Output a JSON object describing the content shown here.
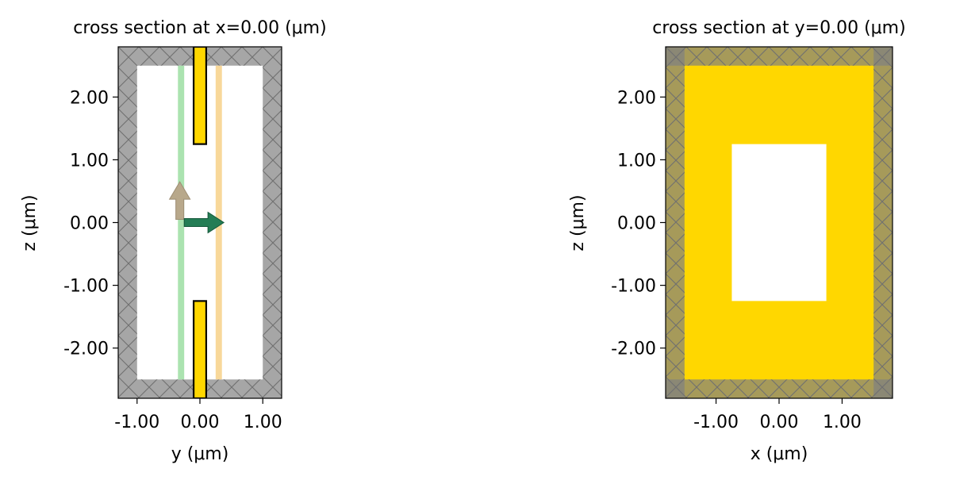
{
  "panels": [
    {
      "id": "left",
      "title": "cross section at x=0.00 (μm)",
      "xlabel": "y (μm)",
      "ylabel": "z (μm)",
      "xlim": [
        -1.3,
        1.3
      ],
      "ylim": [
        -2.8,
        2.8
      ],
      "xticks": [
        -1,
        0,
        1
      ],
      "xtick_labels": [
        "-1.00",
        "0.00",
        "1.00"
      ],
      "yticks": [
        2,
        1,
        0,
        -1,
        -2
      ],
      "ytick_labels": [
        "2.00",
        "1.00",
        "0.00",
        "-1.00",
        "-2.00"
      ],
      "pml_thickness": 0.3,
      "pml_color": "#a6a6a6",
      "source_plane": {
        "y": -0.3,
        "width": 0.1,
        "color": "#abe3b0"
      },
      "monitor_plane": {
        "y": 0.3,
        "width": 0.1,
        "color": "#f8d89a"
      },
      "gold_slabs": [
        {
          "y": [
            -0.1,
            0.1
          ],
          "z": [
            1.25,
            2.8
          ]
        },
        {
          "y": [
            -0.1,
            0.1
          ],
          "z": [
            -2.8,
            -1.25
          ]
        }
      ],
      "gold_color": "#ffd700",
      "injection_arrow_color": "#247d55",
      "polarization_arrow_color": "#b8a88b"
    },
    {
      "id": "right",
      "title": "cross section at y=0.00 (μm)",
      "xlabel": "x (μm)",
      "ylabel": "z (μm)",
      "xlim": [
        -1.8,
        1.8
      ],
      "ylim": [
        -2.8,
        2.8
      ],
      "xticks": [
        -1,
        0,
        1
      ],
      "xtick_labels": [
        "-1.00",
        "0.00",
        "1.00"
      ],
      "yticks": [
        2,
        1,
        0,
        -1,
        -2
      ],
      "ytick_labels": [
        "2.00",
        "1.00",
        "0.00",
        "-1.00",
        "-2.00"
      ],
      "pml_thickness": 0.3,
      "gold_color": "#ffd700",
      "aperture": {
        "x": [
          -0.75,
          0.75
        ],
        "z": [
          -1.25,
          1.25
        ]
      }
    }
  ]
}
